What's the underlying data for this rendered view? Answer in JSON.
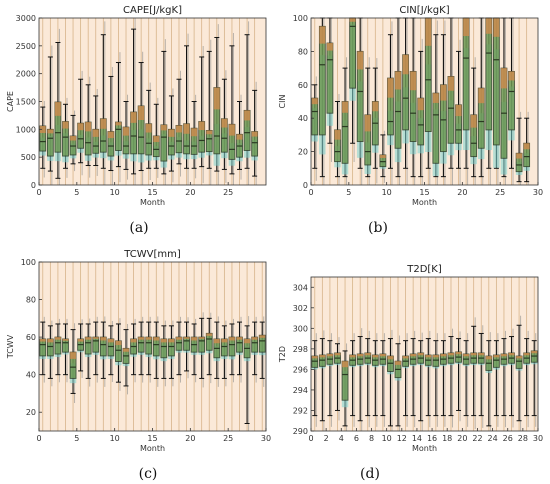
{
  "chart_data": [
    {
      "panel": "(a)",
      "type": "box",
      "title": "CAPE[J/kgK]",
      "xlabel": "Month",
      "ylabel": "CAPE",
      "xlim": [
        0,
        30
      ],
      "ylim": [
        0,
        3000
      ],
      "xticks": [
        0,
        5,
        10,
        15,
        20,
        25
      ],
      "yticks": [
        0,
        500,
        1000,
        1500,
        2000,
        2500,
        3000
      ],
      "x": [
        0,
        1,
        2,
        3,
        4,
        5,
        6,
        7,
        8,
        9,
        10,
        11,
        12,
        13,
        14,
        15,
        16,
        17,
        18,
        19,
        20,
        21,
        22,
        23,
        24,
        25,
        26,
        27,
        28
      ],
      "median": [
        780,
        840,
        940,
        860,
        700,
        830,
        760,
        700,
        790,
        700,
        1000,
        700,
        880,
        860,
        750,
        640,
        860,
        700,
        790,
        700,
        700,
        800,
        830,
        880,
        840,
        640,
        700,
        940,
        760
      ],
      "q1": [
        610,
        520,
        590,
        520,
        540,
        660,
        540,
        570,
        590,
        520,
        620,
        560,
        560,
        560,
        540,
        510,
        430,
        540,
        580,
        560,
        550,
        590,
        600,
        560,
        590,
        460,
        500,
        620,
        520
      ],
      "q3": [
        1060,
        1000,
        1490,
        1140,
        880,
        1110,
        1130,
        1000,
        1190,
        960,
        1130,
        1040,
        1310,
        1420,
        1100,
        880,
        1080,
        1000,
        1070,
        1100,
        1020,
        1140,
        980,
        1750,
        1190,
        1090,
        910,
        1340,
        960
      ],
      "whisker_low": [
        300,
        250,
        120,
        300,
        380,
        400,
        350,
        350,
        300,
        260,
        330,
        280,
        200,
        260,
        300,
        300,
        200,
        250,
        380,
        300,
        300,
        330,
        300,
        250,
        280,
        200,
        280,
        300,
        160
      ],
      "whisker_high": [
        1400,
        2300,
        2560,
        1450,
        1250,
        1900,
        1800,
        1600,
        2700,
        1950,
        2200,
        1500,
        2800,
        2200,
        1700,
        1450,
        2400,
        1600,
        1900,
        2500,
        1500,
        2300,
        2400,
        2650,
        1900,
        2500,
        1500,
        2700,
        1700
      ]
    },
    {
      "panel": "(b)",
      "type": "box",
      "title": "CIN[J/kgK]",
      "xlabel": "Month",
      "ylabel": "CIN",
      "xlim": [
        0,
        30
      ],
      "ylim": [
        0,
        100
      ],
      "xticks": [
        0,
        5,
        10,
        15,
        20,
        25,
        30
      ],
      "yticks": [
        0,
        20,
        40,
        60,
        80,
        100
      ],
      "x": [
        0,
        1,
        2,
        3,
        4,
        5,
        6,
        7,
        8,
        9,
        10,
        11,
        12,
        13,
        14,
        15,
        16,
        17,
        18,
        19,
        20,
        21,
        22,
        23,
        24,
        25,
        26,
        27,
        28
      ],
      "median": [
        44,
        72,
        75,
        20,
        35,
        95,
        56,
        20,
        37,
        14,
        38,
        44,
        52,
        43,
        36,
        63,
        42,
        39,
        46,
        33,
        76,
        25,
        38,
        79,
        75,
        43,
        56,
        12,
        17
      ],
      "q1": [
        30,
        30,
        43,
        14,
        13,
        58,
        26,
        12,
        24,
        11,
        30,
        22,
        33,
        26,
        24,
        32,
        13,
        20,
        25,
        25,
        33,
        17,
        22,
        33,
        24,
        16,
        33,
        8,
        11
      ],
      "q3": [
        52,
        95,
        85,
        33,
        50,
        100,
        80,
        42,
        50,
        18,
        64,
        68,
        78,
        68,
        52,
        100,
        55,
        60,
        65,
        48,
        100,
        42,
        58,
        100,
        100,
        70,
        68,
        19,
        25
      ],
      "whisker_low": [
        10,
        5,
        25,
        5,
        5,
        25,
        10,
        5,
        10,
        5,
        10,
        5,
        10,
        5,
        5,
        10,
        5,
        5,
        10,
        10,
        10,
        5,
        5,
        10,
        10,
        5,
        10,
        2,
        2
      ],
      "whisker_high": [
        60,
        100,
        100,
        50,
        70,
        100,
        100,
        70,
        70,
        30,
        90,
        100,
        100,
        100,
        80,
        100,
        90,
        90,
        100,
        80,
        100,
        70,
        100,
        100,
        100,
        100,
        100,
        40,
        40
      ]
    },
    {
      "panel": "(c)",
      "type": "box",
      "title": "TCWV[mm]",
      "xlabel": "Month",
      "ylabel": "TCWV",
      "xlim": [
        0,
        30
      ],
      "ylim": [
        10,
        100
      ],
      "xticks": [
        0,
        5,
        10,
        15,
        20,
        25,
        30
      ],
      "yticks": [
        20,
        40,
        60,
        80,
        100
      ],
      "x": [
        0,
        1,
        2,
        3,
        4,
        5,
        6,
        7,
        8,
        9,
        10,
        11,
        12,
        13,
        14,
        15,
        16,
        17,
        18,
        19,
        20,
        21,
        22,
        23,
        24,
        25,
        26,
        27,
        28,
        29
      ],
      "median": [
        56,
        55,
        57,
        57,
        44,
        56,
        57,
        58,
        56,
        55,
        53,
        50,
        55,
        57,
        57,
        56,
        55,
        55,
        57,
        58,
        56,
        58,
        59,
        54,
        55,
        56,
        57,
        54,
        57,
        58
      ],
      "q1": [
        50,
        50,
        51,
        52,
        38,
        53,
        51,
        52,
        50,
        50,
        47,
        46,
        51,
        52,
        51,
        50,
        49,
        50,
        53,
        53,
        52,
        52,
        53,
        49,
        50,
        50,
        52,
        49,
        52,
        52
      ],
      "q3": [
        59,
        59,
        60,
        59,
        52,
        59,
        60,
        60,
        60,
        59,
        58,
        54,
        59,
        60,
        60,
        60,
        59,
        59,
        60,
        60,
        60,
        60,
        62,
        59,
        59,
        60,
        60,
        59,
        60,
        61
      ],
      "whisker_low": [
        40,
        38,
        40,
        40,
        30,
        42,
        38,
        40,
        38,
        40,
        36,
        34,
        40,
        40,
        40,
        38,
        38,
        38,
        40,
        42,
        40,
        38,
        40,
        38,
        38,
        40,
        40,
        14,
        40,
        38
      ],
      "whisker_high": [
        68,
        66,
        67,
        67,
        64,
        67,
        67,
        68,
        68,
        66,
        67,
        64,
        67,
        68,
        68,
        68,
        66,
        66,
        68,
        68,
        67,
        70,
        70,
        68,
        66,
        67,
        68,
        66,
        68,
        68
      ]
    },
    {
      "panel": "(d)",
      "type": "box",
      "title": "T2D[K]",
      "xlabel": "Month",
      "ylabel": "T2D",
      "xlim": [
        0,
        30
      ],
      "ylim": [
        290,
        305
      ],
      "xticks": [
        0,
        2,
        4,
        6,
        8,
        10,
        12,
        14,
        16,
        18,
        20,
        22,
        24,
        26,
        28,
        30
      ],
      "yticks": [
        290,
        292,
        294,
        296,
        298,
        300,
        302,
        304
      ],
      "x": [
        0,
        1,
        2,
        3,
        4,
        5,
        6,
        7,
        8,
        9,
        10,
        11,
        12,
        13,
        14,
        15,
        16,
        17,
        18,
        19,
        20,
        21,
        22,
        23,
        24,
        25,
        26,
        27,
        28,
        29
      ],
      "median": [
        296.8,
        296.9,
        297.0,
        297.1,
        295.5,
        296.9,
        297.0,
        297.1,
        296.9,
        297.0,
        296.6,
        296.0,
        296.8,
        297.0,
        297.1,
        296.9,
        296.9,
        297.0,
        297.1,
        297.2,
        297.0,
        297.1,
        297.1,
        296.6,
        296.9,
        297.0,
        297.1,
        296.8,
        297.1,
        297.3
      ],
      "q1": [
        296.2,
        296.3,
        296.5,
        296.6,
        293.0,
        296.4,
        296.5,
        296.6,
        296.4,
        296.5,
        295.8,
        295.2,
        296.3,
        296.5,
        296.6,
        296.4,
        296.3,
        296.5,
        296.6,
        296.7,
        296.5,
        296.6,
        296.6,
        295.9,
        296.2,
        296.5,
        296.6,
        296.1,
        296.6,
        296.7
      ],
      "q3": [
        297.3,
        297.4,
        297.5,
        297.6,
        296.8,
        297.4,
        297.5,
        297.6,
        297.4,
        297.5,
        297.3,
        296.8,
        297.3,
        297.5,
        297.6,
        297.4,
        297.4,
        297.5,
        297.6,
        297.7,
        297.5,
        297.6,
        297.6,
        297.3,
        297.4,
        297.5,
        297.6,
        297.3,
        297.6,
        297.8
      ],
      "whisker_low": [
        291.5,
        291.0,
        291.5,
        292.0,
        290.5,
        291.5,
        291.0,
        291.5,
        291.5,
        291.5,
        290.5,
        290.5,
        291.5,
        291.5,
        291.0,
        291.5,
        291.5,
        291.5,
        291.5,
        292.0,
        291.5,
        291.5,
        291.5,
        290.5,
        291.5,
        291.5,
        291.5,
        291.0,
        291.5,
        291.5
      ],
      "whisker_high": [
        298.8,
        299.0,
        298.8,
        298.5,
        297.8,
        298.8,
        299.2,
        299.0,
        298.8,
        298.8,
        299.0,
        298.5,
        298.8,
        299.0,
        298.8,
        299.0,
        298.8,
        298.8,
        299.2,
        299.0,
        298.8,
        300.2,
        299.5,
        298.8,
        298.8,
        299.0,
        299.2,
        300.3,
        299.0,
        298.8
      ]
    }
  ],
  "colors": {
    "plot_bg": "#fbe9d8",
    "box_fill": "#6e9a55",
    "box_edge": "#2b3a22",
    "upper_fill": "#cf8a4e",
    "spread_fill": "#7ed6d2",
    "whisker_dark": "#111111",
    "whisker_light": "#b9b2aa",
    "guide_line": "#d7b48a"
  }
}
